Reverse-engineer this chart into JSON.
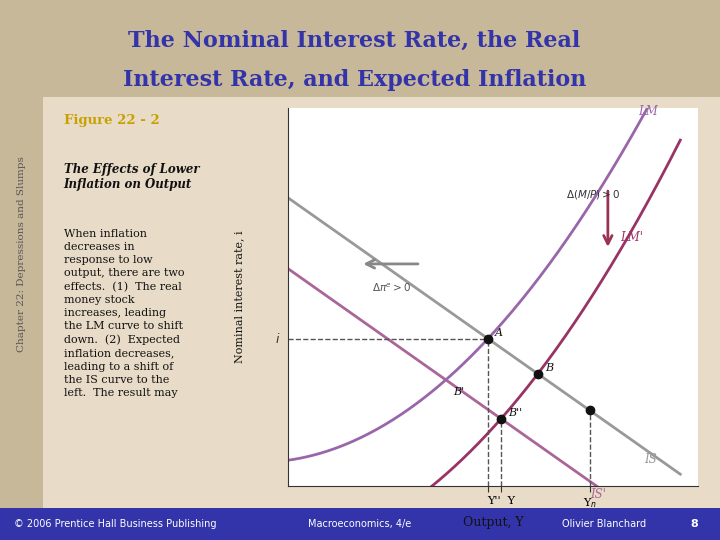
{
  "title_line1": "The Nominal Interest Rate, the Real",
  "title_line2": "Interest Rate, and Expected Inflation",
  "title_color": "#3333aa",
  "title_bg_color": "#c8b89a",
  "sidebar_text": "Chapter 22: Depressions and Slumps",
  "sidebar_bg": "#c8b89a",
  "figure_label": "Figure 22 - 2",
  "figure_label_color": "#c8a000",
  "body_title": "The Effects of Lower\nInflation on Output",
  "body_text": "When inflation\ndecreases in\nresponse to low\noutput, there are two\neffects.  (1)  The real\nmoney stock\nincreases, leading\nthe LM curve to shift\ndown.  (2)  Expected\ninflation decreases,\nleading to a shift of\nthe IS curve to the\nleft.  The result may",
  "footer_left": "© 2006 Prentice Hall Business Publishing",
  "footer_mid": "Macroeconomics, 4/e",
  "footer_right": "Olivier Blanchard",
  "footer_page": "8",
  "footer_bg": "#3333aa",
  "chart_bg": "#ffffff",
  "main_bg": "#e8dcc8",
  "LM_color": "#9966aa",
  "LM_prime_color": "#993366",
  "IS_color": "#999999",
  "IS_prime_color": "#aa6699",
  "point_color": "#111111",
  "dashed_color": "#555555",
  "arrow_IS_color": "#999999",
  "arrow_LM_color": "#993366",
  "x_label": "Output, Y",
  "y_label": "Nominal interest rate, i",
  "x_ticks": [
    "Y''",
    "Y",
    "Y_n"
  ],
  "x_tick_vals": [
    3.0,
    3.4,
    6.0
  ],
  "i_level": 4.5,
  "Yn": 6.0,
  "Y": 3.4,
  "Ydoubleprime": 3.0
}
